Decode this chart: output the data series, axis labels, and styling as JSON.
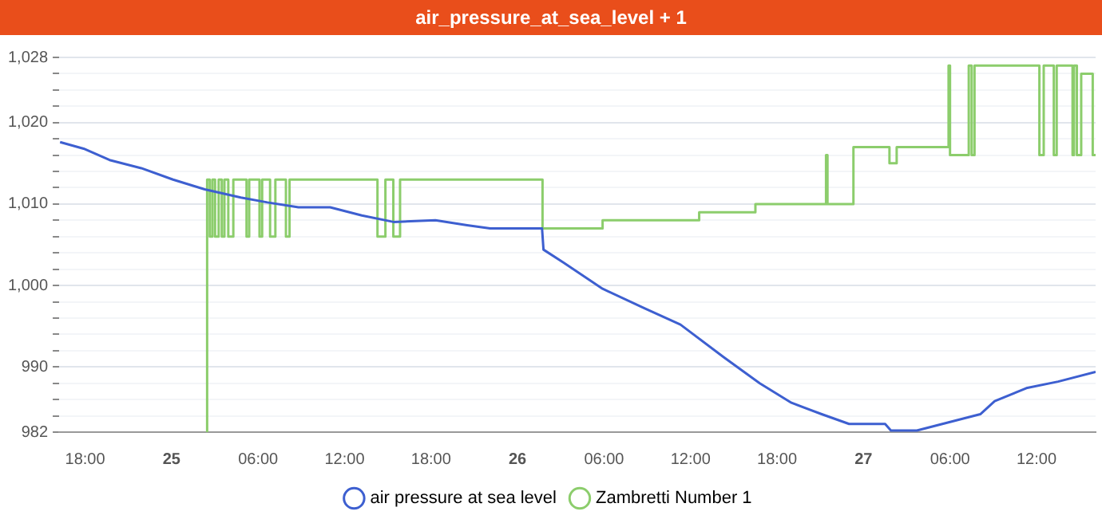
{
  "chart_data": {
    "type": "line",
    "title": "air_pressure_at_sea_level + 1",
    "xlim": [
      "--01-24T16:12",
      "--01-27T16:06"
    ],
    "xticks": [
      {
        "value": "--01-24T18:00",
        "label": "18:00"
      },
      {
        "value": "--01-25",
        "label": "25"
      },
      {
        "value": "--01-25T06:00",
        "label": "06:00"
      },
      {
        "value": "--01-25T12:00",
        "label": "12:00"
      },
      {
        "value": "--01-25T18:00",
        "label": "18:00"
      },
      {
        "value": "--01-26",
        "label": "26"
      },
      {
        "value": "--01-26T06:00",
        "label": "06:00"
      },
      {
        "value": "--01-26T12:00",
        "label": "12:00"
      },
      {
        "value": "--01-26T18:00",
        "label": "18:00"
      },
      {
        "value": "--01-27",
        "label": "27"
      },
      {
        "value": "--01-27T06:00",
        "label": "06:00"
      },
      {
        "value": "--01-27T12:00",
        "label": "12:00"
      }
    ],
    "ylim": [
      982,
      1028
    ],
    "yticks": [
      982,
      {
        "value": 984,
        "label": null
      },
      {
        "value": 986,
        "label": null
      },
      {
        "value": 988,
        "label": null
      },
      990,
      {
        "value": 992,
        "label": null
      },
      {
        "value": 994,
        "label": null
      },
      {
        "value": 996,
        "label": null
      },
      {
        "value": 998,
        "label": null
      },
      {
        "value": 1000,
        "label": "1,000"
      },
      {
        "value": 1002,
        "label": null
      },
      {
        "value": 1004,
        "label": null
      },
      {
        "value": 1006,
        "label": null
      },
      {
        "value": 1008,
        "label": null
      },
      {
        "value": 1010,
        "label": "1,010"
      },
      {
        "value": 1012,
        "label": null
      },
      {
        "value": 1014,
        "label": null
      },
      {
        "value": 1016,
        "label": null
      },
      {
        "value": 1018,
        "label": null
      },
      {
        "value": 1020,
        "label": "1,020"
      },
      {
        "value": 1022,
        "label": null
      },
      {
        "value": 1024,
        "label": null
      },
      {
        "value": 1026,
        "label": null
      },
      {
        "value": 1028,
        "label": "1,028"
      }
    ],
    "grid": "y",
    "legend": "bottom",
    "marker": "none",
    "line_style": "solid",
    "series": [
      {
        "name": "air pressure at sea level",
        "color": "#3d5fd0",
        "x": [
          "--01-24T16:16",
          "--01-24T17:54",
          "--01-24T19:42",
          "--01-24T21:54",
          "--01-25T00:06",
          "--01-25T02:18",
          "--01-25T04:48",
          "--01-25T06:39",
          "--01-25T08:48",
          "--01-25T11:00",
          "--01-25T13:12",
          "--01-25T15:24",
          "--01-25T18:18",
          "--01-25T20:30",
          "--01-25T22:06",
          "--01-26T01:42",
          "--01-26T01:48",
          "--01-26T03:12",
          "--01-26T05:54",
          "--01-26T08:48",
          "--01-26T11:18",
          "--01-26T14:18",
          "--01-26T16:48",
          "--01-26T19:00",
          "--01-26T21:06",
          "--01-26T23:00",
          "--01-27T01:30",
          "--01-27T01:54",
          "--01-27T03:42",
          "--01-27T05:54",
          "--01-27T08:06",
          "--01-27T09:06",
          "--01-27T11:18",
          "--01-27T13:30",
          "--01-27T16:06"
        ],
        "values": [
          1017.6,
          1016.8,
          1015.4,
          1014.4,
          1013,
          1011.8,
          1010.8,
          1010.2,
          1009.6,
          1009.6,
          1008.6,
          1007.8,
          1008,
          1007.4,
          1007,
          1007,
          1004.4,
          1002.8,
          999.6,
          997.2,
          995.2,
          991.2,
          988,
          985.6,
          984.2,
          983,
          983,
          982.2,
          982.2,
          983.2,
          984.2,
          985.8,
          987.4,
          988.2,
          989.4
        ]
      },
      {
        "name": "Zambretti Number 1",
        "type": "step",
        "color": "#8ccd6c",
        "x": [
          "--01-25T02:27",
          "--01-25T02:28",
          "--01-25T02:39",
          "--01-25T02:50",
          "--01-25T03:01",
          "--01-25T03:16",
          "--01-25T03:29",
          "--01-25T03:40",
          "--01-25T03:56",
          "--01-25T04:17",
          "--01-25T05:12",
          "--01-25T05:23",
          "--01-25T06:06",
          "--01-25T06:17",
          "--01-25T06:50",
          "--01-25T07:12",
          "--01-25T07:56",
          "--01-25T08:11",
          "--01-25T14:17",
          "--01-25T14:50",
          "--01-25T15:23",
          "--01-25T15:51",
          "--01-26T01:44",
          "--01-26T05:54",
          "--01-26T12:36",
          "--01-26T16:30",
          "--01-26T21:24",
          "--01-26T21:30",
          "--01-26T23:18",
          "--01-27T01:48",
          "--01-27T02:18",
          "--01-27T05:54",
          "--01-27T06:00",
          "--01-27T07:18",
          "--01-27T07:30",
          "--01-27T07:42",
          "--01-27T12:12",
          "--01-27T12:30",
          "--01-27T13:12",
          "--01-27T13:24",
          "--01-27T14:30",
          "--01-27T14:36",
          "--01-27T14:48",
          "--01-27T15:06",
          "--01-27T15:54",
          "--01-27T16:06"
        ],
        "values": [
          982,
          1013,
          1006,
          1013,
          1006,
          1013,
          1006,
          1013,
          1006,
          1013,
          1006,
          1013,
          1006,
          1013,
          1006,
          1013,
          1006,
          1013,
          1006,
          1013,
          1006,
          1013,
          1007,
          1008,
          1009,
          1010,
          1016,
          1010,
          1017,
          1015,
          1017,
          1027,
          1016,
          1027,
          1016,
          1027,
          1016,
          1027,
          1016,
          1027,
          1016,
          1027,
          1016,
          1026,
          1016,
          1016
        ]
      }
    ]
  }
}
